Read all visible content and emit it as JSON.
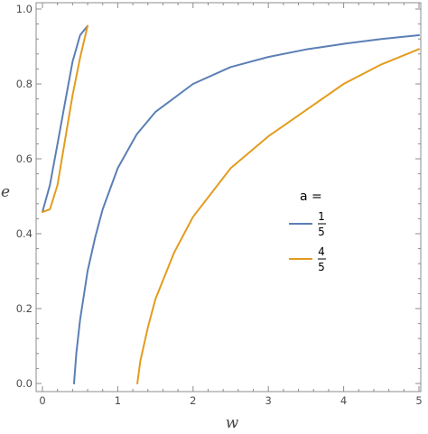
{
  "chart_data": {
    "type": "line",
    "xlabel": "w",
    "ylabel": "e",
    "xlim": [
      0,
      5
    ],
    "ylim": [
      0,
      1
    ],
    "x_ticks": [
      "0",
      "1",
      "2",
      "3",
      "4",
      "5"
    ],
    "y_ticks": [
      "0.0",
      "0.2",
      "0.4",
      "0.6",
      "0.8",
      "1.0"
    ],
    "grid": false,
    "legend": {
      "title": "a =",
      "placement": "right-center",
      "entries": [
        {
          "numerator": "1",
          "denominator": "5",
          "color": "#5b7fb5"
        },
        {
          "numerator": "4",
          "denominator": "5",
          "color": "#e39c1e"
        }
      ]
    },
    "series": [
      {
        "legend_label": "1/5",
        "color": "#5b7fb5",
        "segments": [
          [
            [
              0.0,
              0.458
            ],
            [
              0.1,
              0.53
            ],
            [
              0.2,
              0.64
            ],
            [
              0.3,
              0.75
            ],
            [
              0.4,
              0.86
            ],
            [
              0.5,
              0.93
            ],
            [
              0.6,
              0.955
            ]
          ],
          [
            [
              0.42,
              0.0
            ],
            [
              0.45,
              0.08
            ],
            [
              0.5,
              0.17
            ],
            [
              0.6,
              0.3
            ],
            [
              0.7,
              0.39
            ],
            [
              0.8,
              0.465
            ],
            [
              1.0,
              0.575
            ],
            [
              1.25,
              0.665
            ],
            [
              1.5,
              0.725
            ],
            [
              2.0,
              0.8
            ],
            [
              2.5,
              0.845
            ],
            [
              3.0,
              0.872
            ],
            [
              3.5,
              0.892
            ],
            [
              4.0,
              0.907
            ],
            [
              4.5,
              0.92
            ],
            [
              5.0,
              0.93
            ]
          ]
        ]
      },
      {
        "legend_label": "4/5",
        "color": "#e39c1e",
        "segments": [
          [
            [
              0.0,
              0.458
            ],
            [
              0.1,
              0.465
            ],
            [
              0.2,
              0.53
            ],
            [
              0.3,
              0.65
            ],
            [
              0.4,
              0.77
            ],
            [
              0.5,
              0.87
            ],
            [
              0.6,
              0.955
            ]
          ],
          [
            [
              1.26,
              0.0
            ],
            [
              1.3,
              0.06
            ],
            [
              1.4,
              0.15
            ],
            [
              1.5,
              0.225
            ],
            [
              1.75,
              0.35
            ],
            [
              2.0,
              0.445
            ],
            [
              2.5,
              0.575
            ],
            [
              3.0,
              0.66
            ],
            [
              3.5,
              0.73
            ],
            [
              4.0,
              0.8
            ],
            [
              4.5,
              0.852
            ],
            [
              5.0,
              0.893
            ]
          ]
        ]
      }
    ]
  }
}
